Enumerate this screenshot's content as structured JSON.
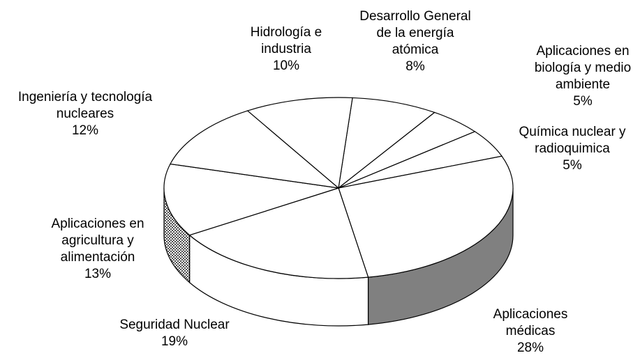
{
  "chart_data": {
    "type": "pie3d",
    "categories": [
      "Desarrollo General de la energía atómica",
      "Aplicaciones en biología y medio ambiente",
      "Química nuclear y radioquimica",
      "Aplicaciones médicas",
      "Seguridad Nuclear",
      "Aplicaciones en agricultura y alimentación",
      "Ingeniería y tecnología nucleares",
      "Hidrología e industria"
    ],
    "values": [
      8,
      5,
      5,
      28,
      19,
      13,
      12,
      10
    ],
    "value_labels": [
      "8%",
      "5%",
      "5%",
      "28%",
      "19%",
      "13%",
      "12%",
      "10%"
    ],
    "colors": [
      "#ffffff",
      "#ffffff",
      "#ffffff",
      "#808080",
      "#ffffff",
      "#404040",
      "#ffffff",
      "#ffffff"
    ]
  }
}
